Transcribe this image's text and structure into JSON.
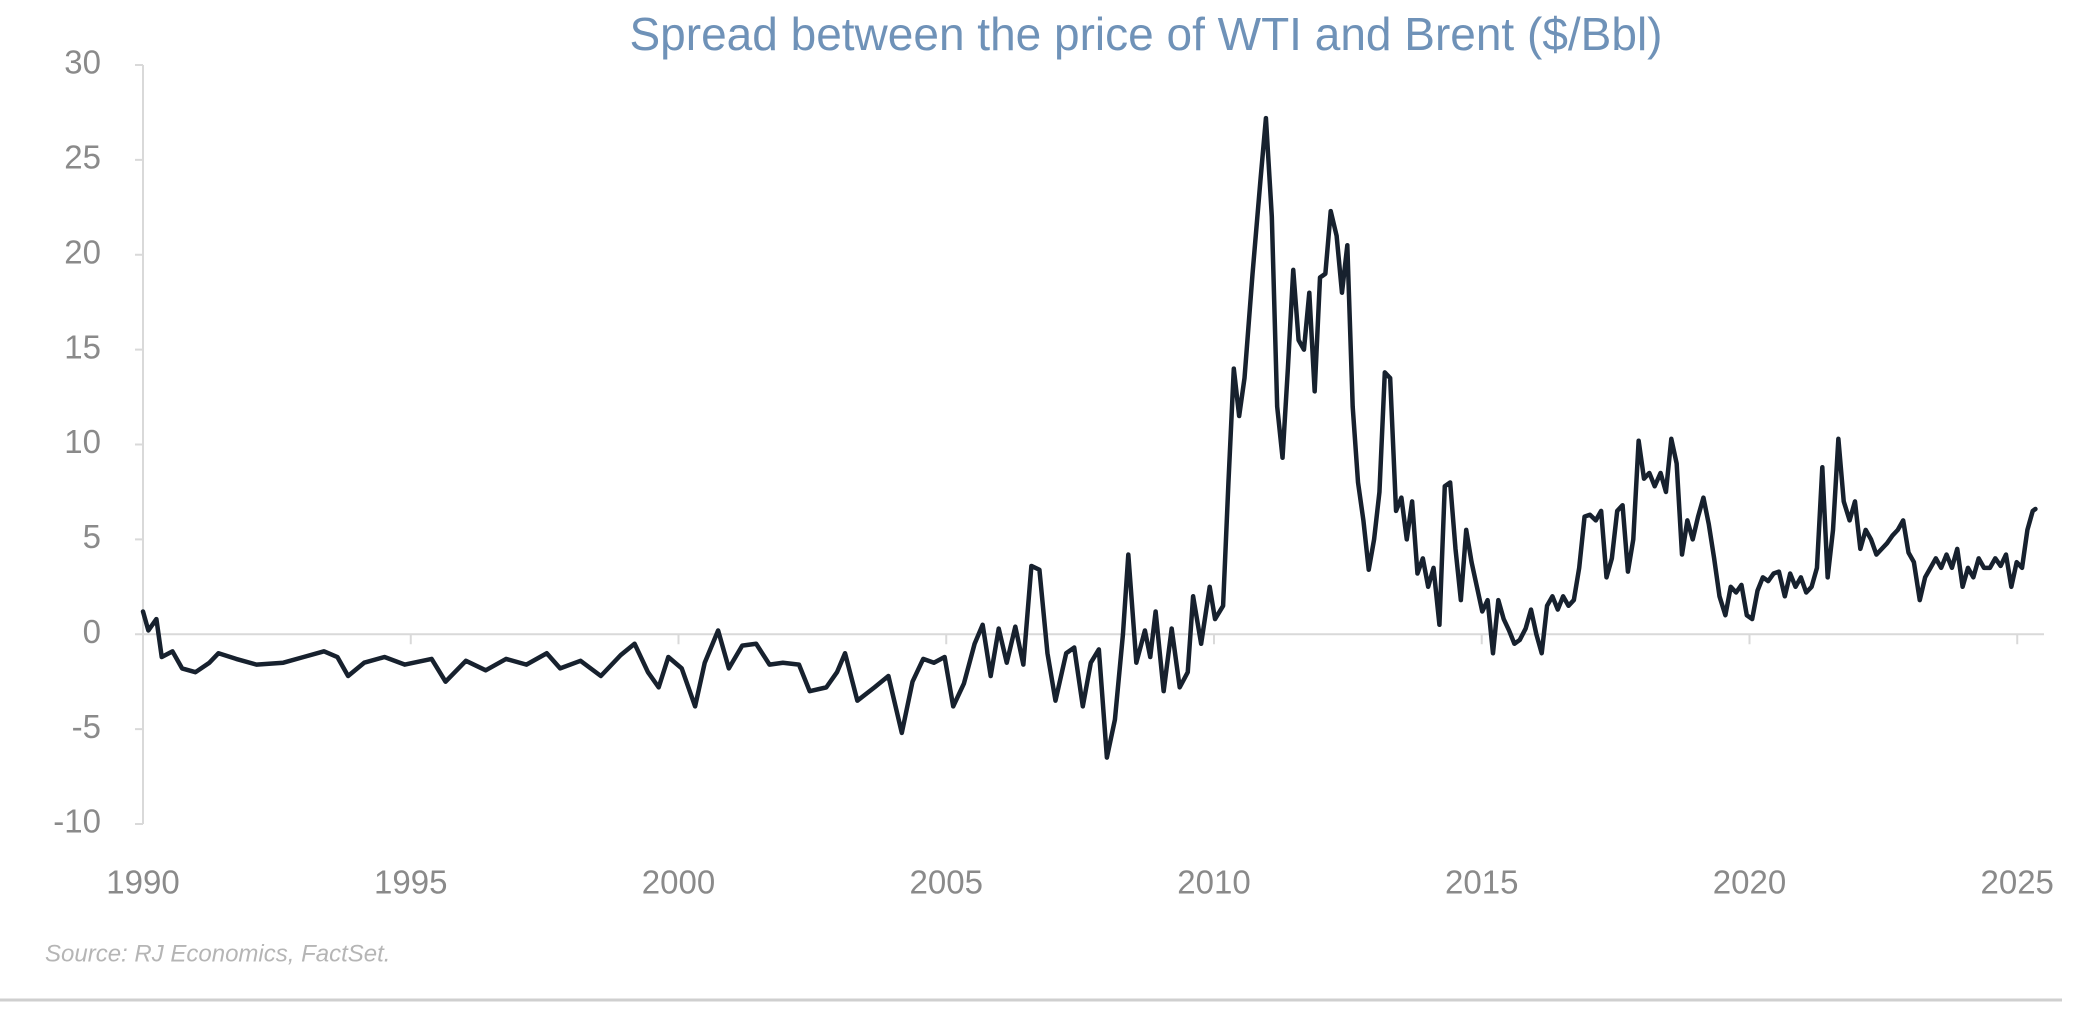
{
  "chart_data": {
    "type": "line",
    "title": "Spread between the price of WTI and Brent ($/Bbl)",
    "source": "Source: RJ Economics, FactSet.",
    "color": "#17212e",
    "xlim": [
      1990,
      2025.5
    ],
    "xticks": [
      1990,
      1995,
      2000,
      2005,
      2010,
      2015,
      2020,
      2025
    ],
    "ylim": [
      -10,
      30
    ],
    "yticks": [
      -10,
      -5,
      0,
      5,
      10,
      15,
      20,
      25,
      30
    ],
    "x": [
      1990.0,
      1990.1,
      1990.25,
      1990.35,
      1990.55,
      1990.73,
      1990.98,
      1991.24,
      1991.41,
      1991.74,
      1992.12,
      1992.62,
      1993.0,
      1993.38,
      1993.63,
      1993.83,
      1994.13,
      1994.51,
      1994.89,
      1995.39,
      1995.65,
      1996.03,
      1996.4,
      1996.78,
      1997.16,
      1997.54,
      1997.79,
      1998.17,
      1998.55,
      1998.92,
      1999.18,
      1999.43,
      1999.63,
      1999.81,
      2000.06,
      2000.31,
      2000.49,
      2000.74,
      2000.94,
      2001.19,
      2001.45,
      2001.7,
      2001.95,
      2002.25,
      2002.45,
      2002.76,
      2002.96,
      2003.11,
      2003.34,
      2003.66,
      2003.92,
      2004.17,
      2004.37,
      2004.57,
      2004.77,
      2004.97,
      2005.13,
      2005.33,
      2005.53,
      2005.68,
      2005.83,
      2005.98,
      2006.13,
      2006.29,
      2006.44,
      2006.59,
      2006.74,
      2006.89,
      2007.04,
      2007.24,
      2007.39,
      2007.55,
      2007.7,
      2007.85,
      2008.0,
      2008.15,
      2008.3,
      2008.4,
      2008.55,
      2008.71,
      2008.81,
      2008.91,
      2009.06,
      2009.21,
      2009.36,
      2009.51,
      2009.61,
      2009.76,
      2009.92,
      2010.02,
      2010.17,
      2010.27,
      2010.37,
      2010.47,
      2010.57,
      2010.72,
      2010.87,
      2010.97,
      2011.08,
      2011.18,
      2011.28,
      2011.38,
      2011.48,
      2011.58,
      2011.68,
      2011.78,
      2011.88,
      2011.98,
      2012.08,
      2012.18,
      2012.29,
      2012.39,
      2012.49,
      2012.59,
      2012.69,
      2012.79,
      2012.89,
      2012.99,
      2013.09,
      2013.19,
      2013.29,
      2013.4,
      2013.5,
      2013.6,
      2013.7,
      2013.8,
      2013.9,
      2014.0,
      2014.1,
      2014.21,
      2014.31,
      2014.41,
      2014.51,
      2014.61,
      2014.71,
      2014.81,
      2014.91,
      2015.01,
      2015.11,
      2015.21,
      2015.31,
      2015.41,
      2015.51,
      2015.61,
      2015.71,
      2015.82,
      2015.92,
      2016.02,
      2016.12,
      2016.22,
      2016.32,
      2016.42,
      2016.52,
      2016.62,
      2016.72,
      2016.82,
      2016.92,
      2017.02,
      2017.13,
      2017.23,
      2017.33,
      2017.43,
      2017.53,
      2017.63,
      2017.73,
      2017.83,
      2017.93,
      2018.03,
      2018.13,
      2018.23,
      2018.34,
      2018.44,
      2018.54,
      2018.64,
      2018.74,
      2018.84,
      2018.94,
      2019.04,
      2019.14,
      2019.24,
      2019.34,
      2019.44,
      2019.55,
      2019.65,
      2019.75,
      2019.85,
      2019.95,
      2020.05,
      2020.15,
      2020.25,
      2020.35,
      2020.45,
      2020.55,
      2020.66,
      2020.76,
      2020.86,
      2020.96,
      2021.06,
      2021.16,
      2021.26,
      2021.36,
      2021.46,
      2021.56,
      2021.66,
      2021.76,
      2021.87,
      2021.97,
      2022.07,
      2022.17,
      2022.27,
      2022.37,
      2022.47,
      2022.57,
      2022.67,
      2022.77,
      2022.87,
      2022.97,
      2023.07,
      2023.18,
      2023.28,
      2023.38,
      2023.48,
      2023.58,
      2023.68,
      2023.78,
      2023.88,
      2023.98,
      2024.08,
      2024.18,
      2024.28,
      2024.38,
      2024.49,
      2024.59,
      2024.69,
      2024.79,
      2024.89,
      2024.99,
      2025.09,
      2025.19,
      2025.29,
      2025.34
    ],
    "values": [
      1.2,
      0.2,
      0.8,
      -1.2,
      -0.9,
      -1.8,
      -2.0,
      -1.5,
      -1.0,
      -1.3,
      -1.6,
      -1.5,
      -1.2,
      -0.9,
      -1.2,
      -2.2,
      -1.5,
      -1.2,
      -1.6,
      -1.3,
      -2.5,
      -1.4,
      -1.9,
      -1.3,
      -1.6,
      -1.0,
      -1.8,
      -1.4,
      -2.2,
      -1.1,
      -0.5,
      -2.0,
      -2.8,
      -1.2,
      -1.8,
      -3.8,
      -1.5,
      0.2,
      -1.8,
      -0.6,
      -0.5,
      -1.6,
      -1.5,
      -1.6,
      -3.0,
      -2.8,
      -2.0,
      -1.0,
      -3.5,
      -2.8,
      -2.2,
      -5.2,
      -2.5,
      -1.3,
      -1.5,
      -1.2,
      -3.8,
      -2.6,
      -0.5,
      0.5,
      -2.2,
      0.3,
      -1.5,
      0.4,
      -1.6,
      3.6,
      3.4,
      -1.0,
      -3.5,
      -1.0,
      -0.7,
      -3.8,
      -1.5,
      -0.8,
      -6.5,
      -4.5,
      0.0,
      4.2,
      -1.5,
      0.2,
      -1.2,
      1.2,
      -3.0,
      0.3,
      -2.8,
      -2.0,
      2.0,
      -0.5,
      2.5,
      0.8,
      1.5,
      8,
      14,
      11.5,
      13.5,
      19,
      24,
      27.2,
      22,
      12,
      9.3,
      14,
      19.2,
      15.5,
      15,
      18,
      12.8,
      18.8,
      19,
      22.3,
      21,
      18,
      20.5,
      12,
      8,
      6,
      3.4,
      5,
      7.5,
      13.8,
      13.5,
      6.5,
      7.2,
      5,
      7,
      3.2,
      4,
      2.5,
      3.5,
      0.5,
      7.8,
      8,
      4.5,
      1.8,
      5.5,
      3.8,
      2.5,
      1.2,
      1.8,
      -1.0,
      1.8,
      0.8,
      0.2,
      -0.5,
      -0.3,
      0.3,
      1.3,
      0.0,
      -1.0,
      1.5,
      2.0,
      1.3,
      2.0,
      1.5,
      1.8,
      3.5,
      6.2,
      6.3,
      6.0,
      6.5,
      3.0,
      4.0,
      6.5,
      6.8,
      3.3,
      5.0,
      10.2,
      8.2,
      8.5,
      7.8,
      8.5,
      7.5,
      10.3,
      9.0,
      4.2,
      6.0,
      5.0,
      6.2,
      7.2,
      5.8,
      4.0,
      2.0,
      1.0,
      2.5,
      2.2,
      2.6,
      1.0,
      0.8,
      2.3,
      3.0,
      2.8,
      3.2,
      3.3,
      2.0,
      3.2,
      2.5,
      3.0,
      2.2,
      2.5,
      3.5,
      8.8,
      3.0,
      5.5,
      10.3,
      7.0,
      6.0,
      7.0,
      4.5,
      5.5,
      5.0,
      4.2,
      4.5,
      4.8,
      5.2,
      5.5,
      6.0,
      4.3,
      3.8,
      1.8,
      3.0,
      3.5,
      4.0,
      3.5,
      4.2,
      3.5,
      4.5,
      2.5,
      3.5,
      3.0,
      4.0,
      3.5,
      3.5,
      4.0,
      3.6,
      4.2,
      2.5,
      3.8,
      3.5,
      5.5,
      6.5,
      6.6
    ]
  }
}
